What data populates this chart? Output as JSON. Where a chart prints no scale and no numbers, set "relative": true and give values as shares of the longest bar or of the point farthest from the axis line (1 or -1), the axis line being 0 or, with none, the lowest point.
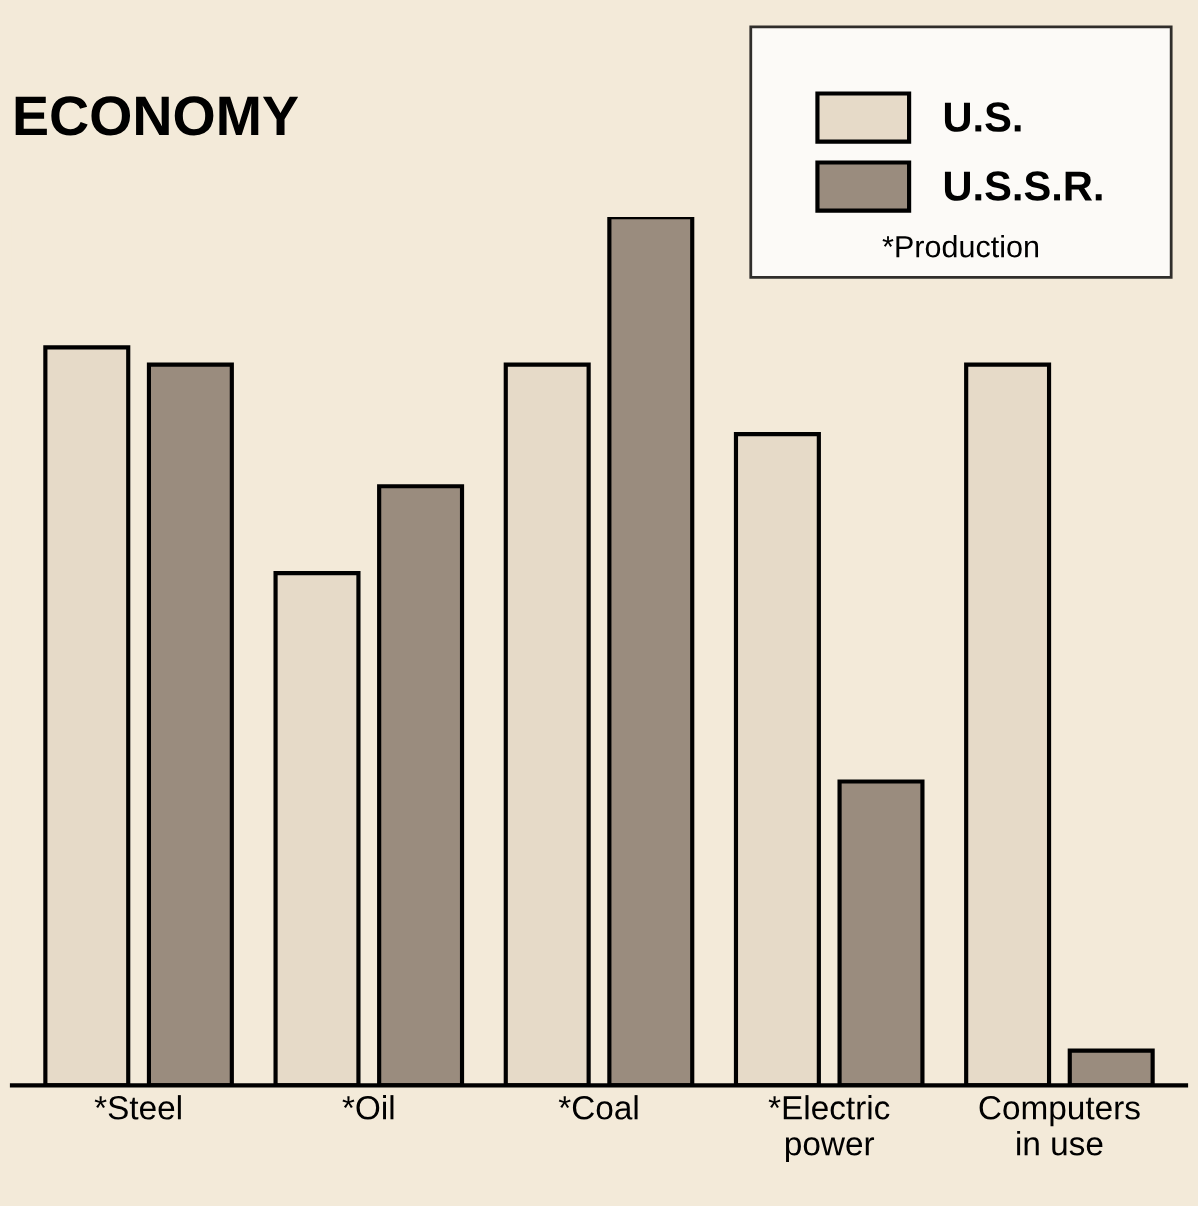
{
  "chart_data": {
    "type": "bar",
    "title": "ECONOMY",
    "relative": true,
    "categories": [
      "*Steel",
      "*Oil",
      "*Coal",
      "*Electric\npower",
      "Computers\nin use"
    ],
    "series": [
      {
        "name": "U.S.",
        "color": "#e6dac8",
        "values": [
          0.85,
          0.59,
          0.83,
          0.75,
          0.83
        ]
      },
      {
        "name": "U.S.S.R.",
        "color": "#9a8c7e",
        "values": [
          0.83,
          0.69,
          1,
          0.35,
          0.04
        ]
      }
    ],
    "legend": "top right",
    "grid": false,
    "annotations": [
      "*Production"
    ]
  }
}
